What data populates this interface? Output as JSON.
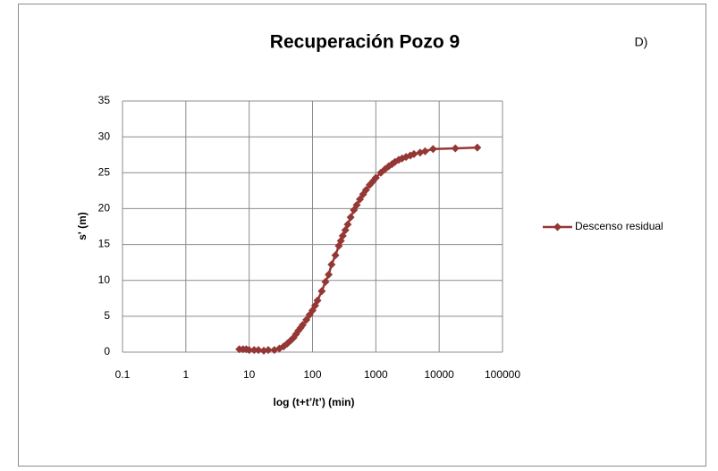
{
  "chart_data": {
    "type": "line",
    "title": "Recuperación Pozo 9",
    "annotation": "D)",
    "xlabel": "log (t+t’/t’) (min)",
    "ylabel": "s' (m)",
    "x": [
      7,
      8,
      9,
      10,
      12,
      14,
      17,
      20,
      25,
      30,
      35,
      40,
      45,
      50,
      55,
      60,
      65,
      70,
      80,
      90,
      100,
      110,
      120,
      140,
      160,
      180,
      200,
      230,
      260,
      280,
      300,
      330,
      360,
      400,
      450,
      500,
      560,
      630,
      700,
      800,
      900,
      1000,
      1200,
      1400,
      1600,
      1800,
      2000,
      2300,
      2600,
      3000,
      3500,
      4000,
      5000,
      6000,
      8000,
      18000,
      40000
    ],
    "series": [
      {
        "name": "Descenso residual",
        "color": "#953735",
        "values": [
          0.4,
          0.4,
          0.4,
          0.3,
          0.3,
          0.3,
          0.2,
          0.3,
          0.3,
          0.5,
          0.8,
          1.2,
          1.6,
          2.0,
          2.5,
          3.0,
          3.4,
          3.8,
          4.5,
          5.2,
          5.8,
          6.5,
          7.2,
          8.5,
          9.8,
          10.8,
          12.2,
          13.5,
          14.8,
          15.5,
          16.2,
          17.0,
          17.8,
          18.8,
          19.8,
          20.5,
          21.3,
          22.0,
          22.6,
          23.3,
          23.8,
          24.3,
          25.0,
          25.5,
          25.9,
          26.2,
          26.5,
          26.8,
          27.0,
          27.2,
          27.4,
          27.6,
          27.8,
          28.0,
          28.3,
          28.4,
          28.5
        ]
      }
    ],
    "xlim": [
      0.1,
      100000
    ],
    "xticks": [
      0.1,
      1,
      10,
      100,
      1000,
      10000,
      100000
    ],
    "xscale": "log",
    "ylim": [
      0,
      35
    ],
    "yticks": [
      0,
      5,
      10,
      15,
      20,
      25,
      30,
      35
    ],
    "grid": true,
    "legend": "right"
  }
}
